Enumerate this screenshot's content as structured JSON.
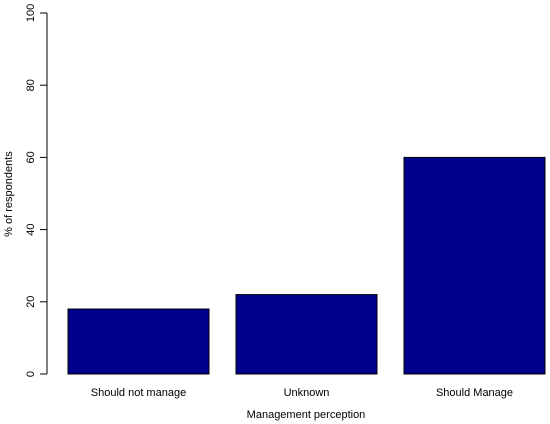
{
  "chart_data": {
    "type": "bar",
    "categories": [
      "Should not manage",
      "Unknown",
      "Should Manage"
    ],
    "values": [
      18,
      22,
      60
    ],
    "xlabel": "Management perception",
    "ylabel": "% of respondents",
    "ylim": [
      0,
      100
    ],
    "yticks": [
      0,
      20,
      40,
      60,
      80,
      100
    ],
    "grid": false,
    "bar_color": "#00008B"
  }
}
